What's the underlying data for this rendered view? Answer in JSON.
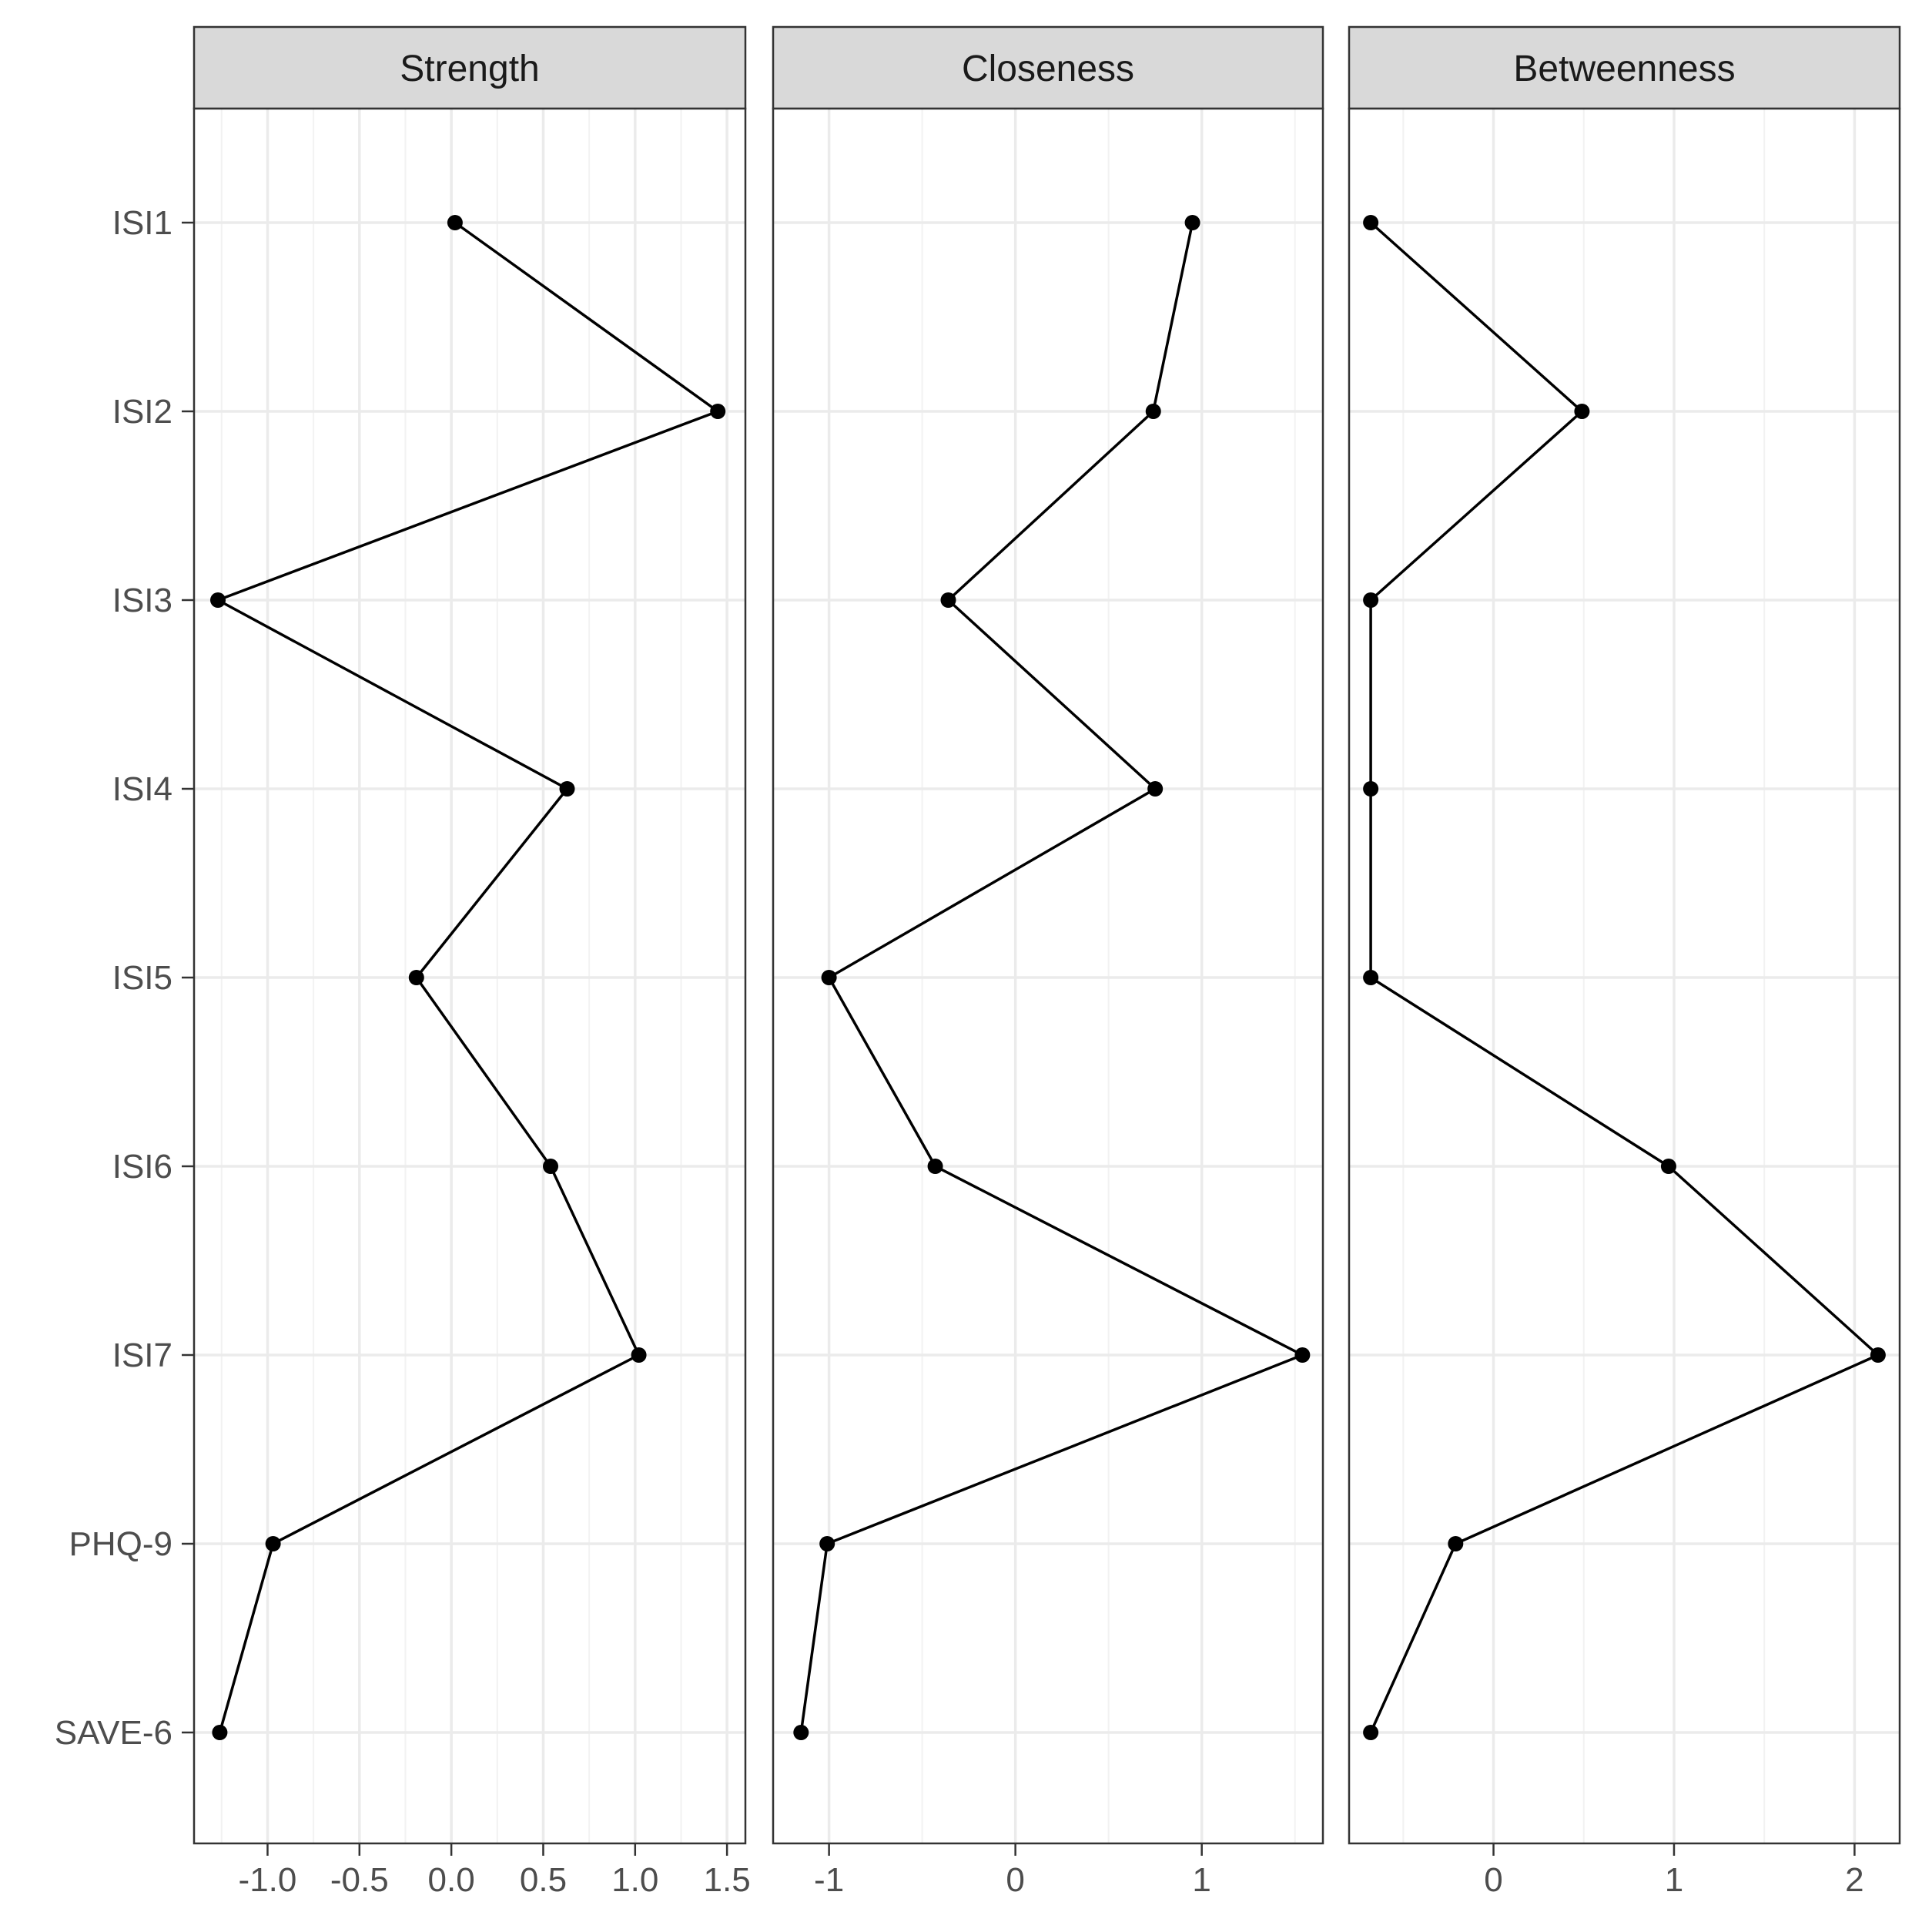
{
  "chart_data": {
    "type": "line",
    "facet_layout": "three panels side by side, shared y axis of nodes",
    "nodes": [
      "ISI1",
      "ISI2",
      "ISI3",
      "ISI4",
      "ISI5",
      "ISI6",
      "ISI7",
      "PHQ-9",
      "SAVE-6"
    ],
    "grid": true,
    "legend": "none",
    "line_color": "#000000",
    "strip_color": "#d9d9d9",
    "panels": [
      {
        "title": "Strength",
        "xlim": [
          -1.4,
          1.6
        ],
        "ticks": [
          -1.0,
          -0.5,
          0.0,
          0.5,
          1.0,
          1.5
        ],
        "tick_labels": [
          "-1.0",
          "-0.5",
          "0.0",
          "0.5",
          "1.0",
          "1.5"
        ],
        "values": [
          0.02,
          1.45,
          -1.27,
          0.63,
          -0.19,
          0.54,
          1.02,
          -0.97,
          -1.26
        ]
      },
      {
        "title": "Closeness",
        "xlim": [
          -1.3,
          1.65
        ],
        "ticks": [
          -1,
          0,
          1
        ],
        "tick_labels": [
          "-1",
          "0",
          "1"
        ],
        "values": [
          0.95,
          0.74,
          -0.36,
          0.75,
          -1.0,
          -0.43,
          1.54,
          -1.01,
          -1.15
        ]
      },
      {
        "title": "Betweenness",
        "xlim": [
          -0.8,
          2.25
        ],
        "ticks": [
          0,
          1,
          2
        ],
        "tick_labels": [
          "0",
          "1",
          "2"
        ],
        "values": [
          -0.68,
          0.49,
          -0.68,
          -0.68,
          -0.68,
          0.97,
          2.13,
          -0.21,
          -0.68
        ]
      }
    ]
  }
}
